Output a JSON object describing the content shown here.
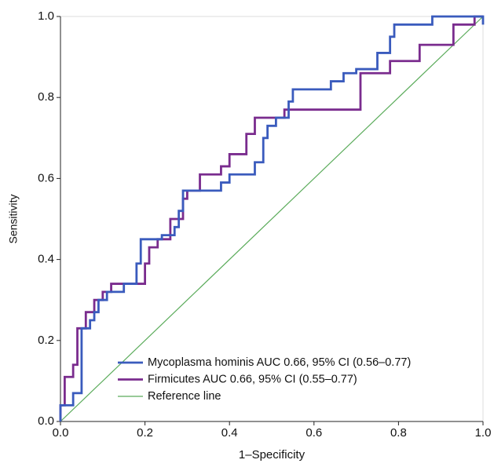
{
  "chart_data": {
    "type": "line",
    "xlabel": "1–Specificity",
    "ylabel": "Sensitivity",
    "xlim": [
      0,
      1
    ],
    "ylim": [
      0,
      1
    ],
    "xticks": [
      {
        "value": 0,
        "label": "0.0"
      },
      0.2,
      0.4,
      0.6,
      0.8,
      {
        "value": 1,
        "label": "1.0"
      }
    ],
    "yticks": [
      {
        "value": 0,
        "label": "0.0"
      },
      0.2,
      0.4,
      0.6,
      0.8,
      {
        "value": 1,
        "label": "1.0"
      }
    ],
    "grid": false,
    "legend": "lower-left",
    "series": [
      {
        "name": "Mycoplasma hominis AUC 0.66, 95% CI (0.56–0.77)",
        "color": "#3a5bbd",
        "x": [
          0,
          0,
          0.03,
          0.03,
          0.05,
          0.05,
          0.07,
          0.07,
          0.08,
          0.08,
          0.09,
          0.09,
          0.11,
          0.11,
          0.15,
          0.15,
          0.18,
          0.18,
          0.19,
          0.19,
          0.24,
          0.24,
          0.27,
          0.27,
          0.28,
          0.28,
          0.29,
          0.29,
          0.38,
          0.38,
          0.4,
          0.4,
          0.46,
          0.46,
          0.48,
          0.48,
          0.49,
          0.49,
          0.51,
          0.51,
          0.54,
          0.54,
          0.55,
          0.55,
          0.64,
          0.64,
          0.67,
          0.67,
          0.7,
          0.7,
          0.75,
          0.75,
          0.78,
          0.78,
          0.79,
          0.79,
          0.88,
          0.88,
          1.0,
          1.0
        ],
        "values": [
          0,
          0.04,
          0.04,
          0.07,
          0.07,
          0.23,
          0.23,
          0.25,
          0.25,
          0.27,
          0.27,
          0.3,
          0.3,
          0.32,
          0.32,
          0.34,
          0.34,
          0.39,
          0.39,
          0.45,
          0.45,
          0.46,
          0.46,
          0.48,
          0.48,
          0.52,
          0.52,
          0.57,
          0.57,
          0.59,
          0.59,
          0.61,
          0.61,
          0.64,
          0.64,
          0.7,
          0.7,
          0.73,
          0.73,
          0.75,
          0.75,
          0.79,
          0.79,
          0.82,
          0.82,
          0.84,
          0.84,
          0.86,
          0.86,
          0.87,
          0.87,
          0.91,
          0.91,
          0.95,
          0.95,
          0.98,
          0.98,
          1.0,
          1.0,
          0.98
        ]
      },
      {
        "name": "Firmicutes AUC 0.66, 95% CI (0.55–0.77)",
        "color": "#7a2c8e",
        "x": [
          0,
          0,
          0.01,
          0.01,
          0.03,
          0.03,
          0.04,
          0.04,
          0.06,
          0.06,
          0.08,
          0.08,
          0.1,
          0.1,
          0.12,
          0.12,
          0.2,
          0.2,
          0.21,
          0.21,
          0.23,
          0.23,
          0.26,
          0.26,
          0.29,
          0.29,
          0.3,
          0.3,
          0.33,
          0.33,
          0.38,
          0.38,
          0.4,
          0.4,
          0.44,
          0.44,
          0.46,
          0.46,
          0.53,
          0.53,
          0.71,
          0.71,
          0.78,
          0.78,
          0.85,
          0.85,
          0.93,
          0.93,
          0.98,
          0.98,
          1.0
        ],
        "values": [
          0,
          0.04,
          0.04,
          0.11,
          0.11,
          0.14,
          0.14,
          0.23,
          0.23,
          0.27,
          0.27,
          0.3,
          0.3,
          0.32,
          0.32,
          0.34,
          0.34,
          0.39,
          0.39,
          0.43,
          0.43,
          0.45,
          0.45,
          0.5,
          0.5,
          0.55,
          0.55,
          0.57,
          0.57,
          0.61,
          0.61,
          0.63,
          0.63,
          0.66,
          0.66,
          0.71,
          0.71,
          0.75,
          0.75,
          0.77,
          0.77,
          0.86,
          0.86,
          0.89,
          0.89,
          0.93,
          0.93,
          0.98,
          0.98,
          1.0,
          1.0
        ]
      },
      {
        "name": "Reference line",
        "color": "#5aab5a",
        "width": 1.2,
        "x": [
          0,
          1
        ],
        "values": [
          0,
          1
        ]
      }
    ]
  }
}
